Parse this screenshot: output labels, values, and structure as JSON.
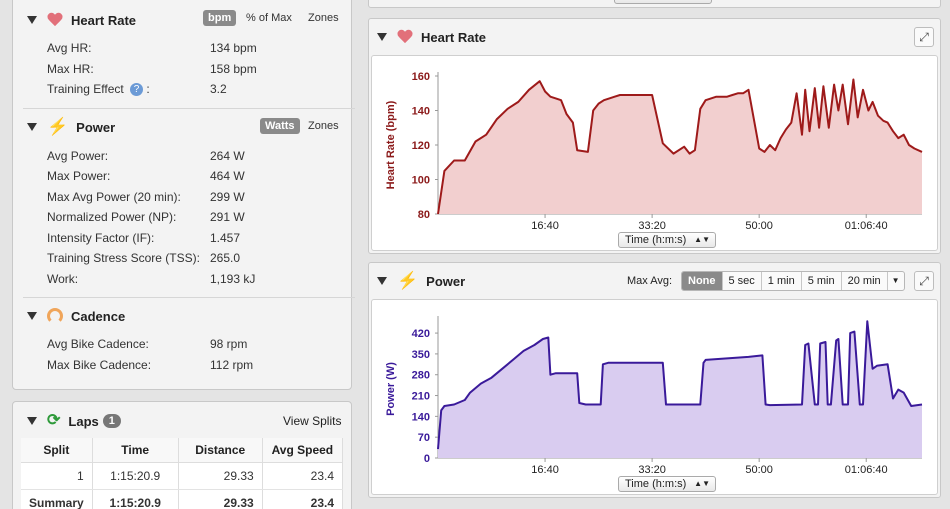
{
  "heart_rate": {
    "title": "Heart Rate",
    "toggle": [
      "bpm",
      "% of Max",
      "Zones"
    ],
    "rows": [
      {
        "label": "Avg HR:",
        "value": "134 bpm"
      },
      {
        "label": "Max HR:",
        "value": "158 bpm"
      },
      {
        "label": "Training Effect",
        "value": "3.2"
      }
    ]
  },
  "power": {
    "title": "Power",
    "toggle": [
      "Watts",
      "Zones"
    ],
    "rows": [
      {
        "label": "Avg Power:",
        "value": "264 W"
      },
      {
        "label": "Max Power:",
        "value": "464 W"
      },
      {
        "label": "Max Avg Power (20 min):",
        "value": "299 W"
      },
      {
        "label": "Normalized Power (NP):",
        "value": "291 W"
      },
      {
        "label": "Intensity Factor (IF):",
        "value": "1.457"
      },
      {
        "label": "Training Stress Score (TSS):",
        "value": "265.0"
      },
      {
        "label": "Work:",
        "value": "1,193 kJ"
      }
    ]
  },
  "cadence": {
    "title": "Cadence",
    "rows": [
      {
        "label": "Avg Bike Cadence:",
        "value": "98 rpm"
      },
      {
        "label": "Max Bike Cadence:",
        "value": "112 rpm"
      }
    ]
  },
  "laps": {
    "title": "Laps",
    "count": "1",
    "view_splits": "View Splits",
    "columns": [
      "Split",
      "Time",
      "Distance",
      "Avg Speed"
    ],
    "rows": [
      [
        "1",
        "1:15:20.9",
        "29.33",
        "23.4"
      ],
      [
        "Summary",
        "1:15:20.9",
        "29.33",
        "23.4"
      ]
    ]
  },
  "hr_chart_panel": {
    "title": "Heart Rate",
    "time_select": "Time (h:m:s)"
  },
  "power_chart_panel": {
    "title": "Power",
    "max_avg_label": "Max Avg:",
    "max_avg_options": [
      "None",
      "5 sec",
      "1 min",
      "5 min",
      "20 min"
    ],
    "selected": "None",
    "time_select": "Time (h:m:s)"
  },
  "colors": {
    "hr_line": "#9e1a1a",
    "hr_fill": "#f2cfcf",
    "power_line": "#3a1a9a",
    "power_fill": "#d9ccf0",
    "axis_hr_label": "#8b1a1a",
    "axis_power_label": "#3a1a9a"
  },
  "chart_data": [
    {
      "type": "area",
      "ylabel": "Heart Rate (bpm)",
      "ylim": [
        80,
        160
      ],
      "yticks": [
        80,
        100,
        120,
        140,
        160
      ],
      "xlabel": "Time (h:m:s)",
      "xticks": [
        "16:40",
        "33:20",
        "50:00",
        "01:06:40"
      ],
      "xtick_seconds": [
        1000,
        2000,
        3000,
        4000
      ],
      "xlim": [
        0,
        4521
      ],
      "x": [
        0,
        60,
        150,
        250,
        350,
        450,
        550,
        650,
        750,
        850,
        950,
        1000,
        1050,
        1100,
        1150,
        1200,
        1260,
        1300,
        1400,
        1450,
        1500,
        1550,
        1600,
        1650,
        1700,
        1800,
        1900,
        2000,
        2100,
        2200,
        2300,
        2350,
        2400,
        2450,
        2500,
        2550,
        2600,
        2650,
        2700,
        2750,
        2800,
        2850,
        2900,
        3000,
        3050,
        3100,
        3150,
        3200,
        3250,
        3300,
        3350,
        3400,
        3430,
        3470,
        3520,
        3560,
        3600,
        3650,
        3700,
        3740,
        3780,
        3830,
        3880,
        3920,
        3970,
        4020,
        4060,
        4110,
        4160,
        4200,
        4250,
        4300,
        4350,
        4400,
        4450,
        4521
      ],
      "series": [
        {
          "values": [
            80,
            105,
            111,
            111,
            122,
            126,
            135,
            141,
            145,
            152,
            157,
            151,
            148,
            147,
            146,
            138,
            133,
            117,
            116,
            140,
            144,
            146,
            147,
            148,
            149,
            149,
            149,
            149,
            121,
            115,
            119,
            115,
            117,
            141,
            146,
            147,
            148,
            148,
            148,
            149,
            150,
            150,
            152,
            118,
            116,
            120,
            117,
            124,
            129,
            133,
            150,
            126,
            152,
            128,
            153,
            130,
            154,
            130,
            155,
            140,
            155,
            132,
            158,
            136,
            152,
            140,
            145,
            137,
            134,
            133,
            128,
            124,
            126,
            120,
            118,
            116
          ]
        }
      ]
    },
    {
      "type": "area",
      "ylabel": "Power (W)",
      "ylim": [
        0,
        464
      ],
      "yticks": [
        0,
        70,
        140,
        210,
        280,
        350,
        420
      ],
      "xlabel": "Time (h:m:s)",
      "xticks": [
        "16:40",
        "33:20",
        "50:00",
        "01:06:40"
      ],
      "xtick_seconds": [
        1000,
        2000,
        3000,
        4000
      ],
      "xlim": [
        0,
        4521
      ],
      "x": [
        0,
        30,
        60,
        150,
        250,
        300,
        400,
        500,
        600,
        700,
        800,
        900,
        980,
        1030,
        1050,
        1100,
        1300,
        1320,
        1380,
        1520,
        1540,
        1590,
        1620,
        1650,
        2100,
        2130,
        2160,
        2450,
        2480,
        2500,
        2900,
        3030,
        3060,
        3100,
        3400,
        3430,
        3460,
        3520,
        3550,
        3570,
        3620,
        3640,
        3670,
        3720,
        3740,
        3780,
        3830,
        3850,
        3890,
        3940,
        3970,
        4010,
        4060,
        4100,
        4200,
        4250,
        4300,
        4350,
        4420,
        4521
      ],
      "series": [
        {
          "values": [
            30,
            160,
            175,
            180,
            195,
            220,
            250,
            270,
            300,
            330,
            360,
            380,
            400,
            405,
            280,
            285,
            285,
            185,
            180,
            180,
            315,
            320,
            320,
            320,
            320,
            180,
            180,
            180,
            320,
            330,
            340,
            345,
            180,
            178,
            180,
            380,
            385,
            180,
            180,
            385,
            390,
            180,
            180,
            395,
            400,
            180,
            180,
            420,
            425,
            180,
            180,
            460,
            300,
            310,
            315,
            200,
            230,
            220,
            175,
            180
          ]
        }
      ]
    }
  ]
}
